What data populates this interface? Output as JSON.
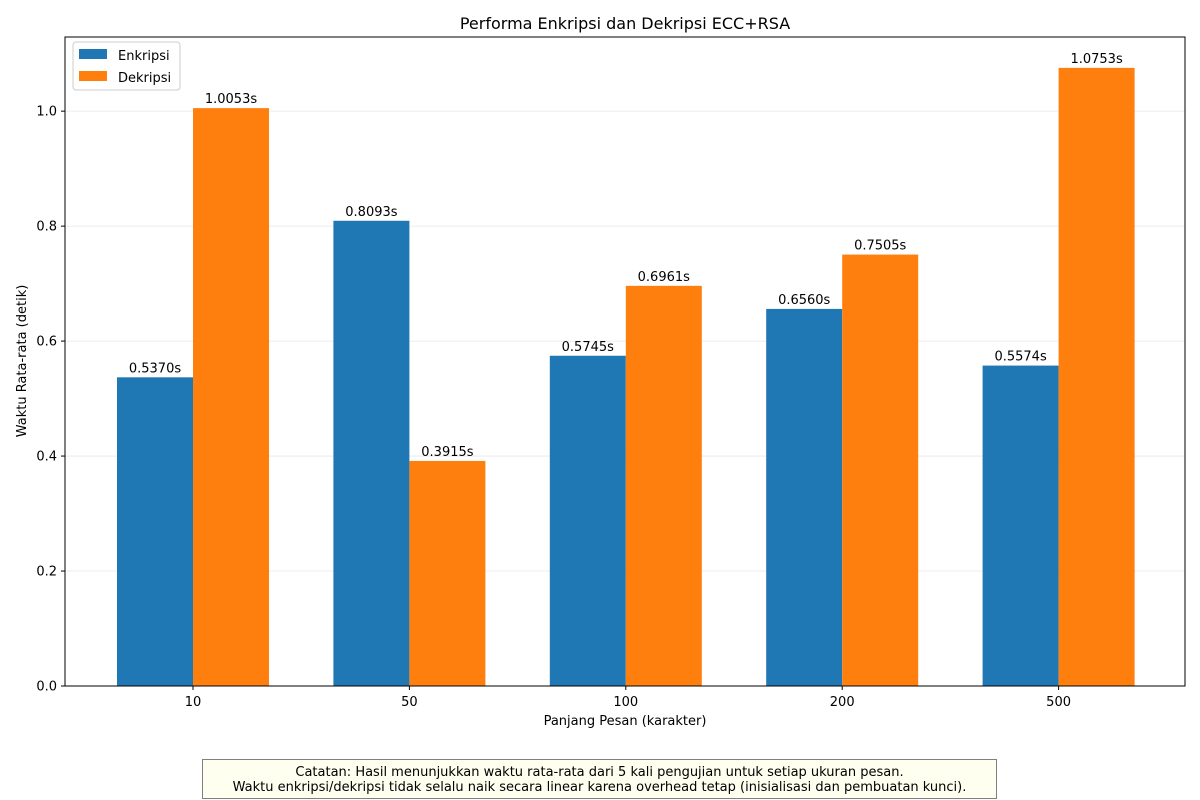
{
  "chart_data": {
    "type": "bar",
    "title": "Performa Enkripsi dan Dekripsi ECC+RSA",
    "xlabel": "Panjang Pesan (karakter)",
    "ylabel": "Waktu Rata-rata (detik)",
    "categories": [
      "10",
      "50",
      "100",
      "200",
      "500"
    ],
    "series": [
      {
        "name": "Enkripsi",
        "color": "#1f77b4",
        "values": [
          0.537,
          0.8093,
          0.5745,
          0.656,
          0.5574
        ],
        "labels": [
          "0.5370s",
          "0.8093s",
          "0.5745s",
          "0.6560s",
          "0.5574s"
        ]
      },
      {
        "name": "Dekripsi",
        "color": "#ff7f0e",
        "values": [
          1.0053,
          0.3915,
          0.6961,
          0.7505,
          1.0753
        ],
        "labels": [
          "1.0053s",
          "0.3915s",
          "0.6961s",
          "0.7505s",
          "1.0753s"
        ]
      }
    ],
    "ylim": [
      0,
      1.129
    ],
    "yticks": [
      "0.0",
      "0.2",
      "0.4",
      "0.6",
      "0.8",
      "1.0"
    ],
    "grid": "y",
    "legend_position": "top-left"
  },
  "note": {
    "line1": "Catatan: Hasil menunjukkan waktu rata-rata dari 5 kali pengujian untuk setiap ukuran pesan.",
    "line2": "Waktu enkripsi/dekripsi tidak selalu naik secara linear karena overhead tetap (inisialisasi dan pembuatan kunci)."
  }
}
